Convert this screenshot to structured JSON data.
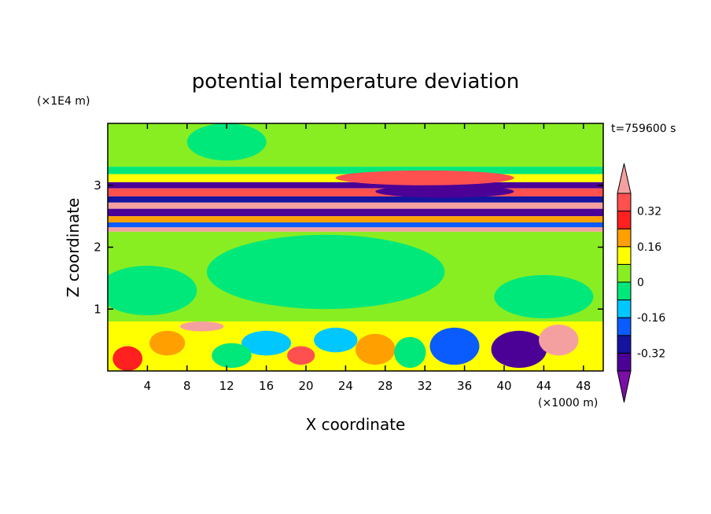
{
  "chart_data": {
    "type": "heatmap",
    "title": "potential temperature deviation",
    "xlabel": "X coordinate",
    "ylabel": "Z coordinate",
    "x_unit": "(×1000 m)",
    "y_unit": "(×1E4 m)",
    "time_label": "t=759600 s",
    "xlim": [
      0,
      50
    ],
    "ylim": [
      0,
      4
    ],
    "x_ticks": [
      4,
      8,
      12,
      16,
      20,
      24,
      28,
      32,
      36,
      40,
      44,
      48
    ],
    "y_ticks": [
      1,
      2,
      3
    ],
    "colorbar": {
      "levels": [
        -0.4,
        -0.32,
        -0.24,
        -0.16,
        -0.08,
        0,
        0.08,
        0.16,
        0.24,
        0.32,
        0.4
      ],
      "colors": [
        "#7b0fa8",
        "#4b0096",
        "#1414a0",
        "#0a5cff",
        "#00c8ff",
        "#00e87a",
        "#88ee22",
        "#ffff00",
        "#ffa000",
        "#ff2020",
        "#ff5050",
        "#f5a0a0"
      ],
      "tick_labels": [
        "-0.32",
        "-0.16",
        "0",
        "0.16",
        "0.32"
      ],
      "tick_values": [
        -0.32,
        -0.16,
        0,
        0.16,
        0.32
      ]
    },
    "bands": [
      {
        "z0": 3.3,
        "z1": 4.0,
        "value": 0.02
      },
      {
        "z0": 3.18,
        "z1": 3.3,
        "value": -0.06
      },
      {
        "z0": 3.05,
        "z1": 3.18,
        "value": 0.14
      },
      {
        "z0": 2.95,
        "z1": 3.05,
        "value": -0.38
      },
      {
        "z0": 2.82,
        "z1": 2.95,
        "value": 0.34
      },
      {
        "z0": 2.72,
        "z1": 2.82,
        "value": -0.3
      },
      {
        "z0": 2.62,
        "z1": 2.72,
        "value": 0.42
      },
      {
        "z0": 2.5,
        "z1": 2.62,
        "value": -0.36
      },
      {
        "z0": 2.4,
        "z1": 2.5,
        "value": 0.22
      },
      {
        "z0": 2.32,
        "z1": 2.4,
        "value": -0.2
      },
      {
        "z0": 2.25,
        "z1": 2.32,
        "value": 0.42
      },
      {
        "z0": 0.8,
        "z1": 2.25,
        "value": 0.05
      },
      {
        "z0": 0.0,
        "z1": 0.8,
        "value": 0.1
      }
    ],
    "features": [
      {
        "x": 32,
        "z": 3.12,
        "rx": 9,
        "rz": 0.12,
        "value": 0.34
      },
      {
        "x": 34,
        "z": 2.9,
        "rx": 7,
        "rz": 0.1,
        "value": -0.4
      },
      {
        "x": 26,
        "z": 3.55,
        "rx": 6,
        "rz": 0.25,
        "value": 0.06
      },
      {
        "x": 12,
        "z": 3.7,
        "rx": 4,
        "rz": 0.3,
        "value": -0.02
      },
      {
        "x": 22,
        "z": 1.6,
        "rx": 12,
        "rz": 0.6,
        "value": -0.02
      },
      {
        "x": 4,
        "z": 1.3,
        "rx": 5,
        "rz": 0.4,
        "value": -0.02
      },
      {
        "x": 44,
        "z": 1.2,
        "rx": 5,
        "rz": 0.35,
        "value": -0.02
      },
      {
        "x": 41.5,
        "z": 0.35,
        "rx": 2.8,
        "rz": 0.3,
        "value": -0.38
      },
      {
        "x": 45.5,
        "z": 0.5,
        "rx": 2.0,
        "rz": 0.25,
        "value": 0.42
      },
      {
        "x": 9.5,
        "z": 0.72,
        "rx": 2.2,
        "rz": 0.08,
        "value": 0.42
      },
      {
        "x": 19.5,
        "z": 0.25,
        "rx": 1.4,
        "rz": 0.15,
        "value": 0.36
      },
      {
        "x": 2,
        "z": 0.2,
        "rx": 1.5,
        "rz": 0.2,
        "value": 0.3
      },
      {
        "x": 16,
        "z": 0.45,
        "rx": 2.5,
        "rz": 0.2,
        "value": -0.12
      },
      {
        "x": 27,
        "z": 0.35,
        "rx": 2.0,
        "rz": 0.25,
        "value": 0.2
      },
      {
        "x": 35,
        "z": 0.4,
        "rx": 2.5,
        "rz": 0.3,
        "value": -0.2
      },
      {
        "x": 6,
        "z": 0.45,
        "rx": 1.8,
        "rz": 0.2,
        "value": 0.16
      },
      {
        "x": 12.5,
        "z": 0.25,
        "rx": 2.0,
        "rz": 0.2,
        "value": -0.05
      },
      {
        "x": 23,
        "z": 0.5,
        "rx": 2.2,
        "rz": 0.2,
        "value": -0.1
      },
      {
        "x": 30.5,
        "z": 0.3,
        "rx": 1.6,
        "rz": 0.25,
        "value": -0.06
      }
    ]
  }
}
